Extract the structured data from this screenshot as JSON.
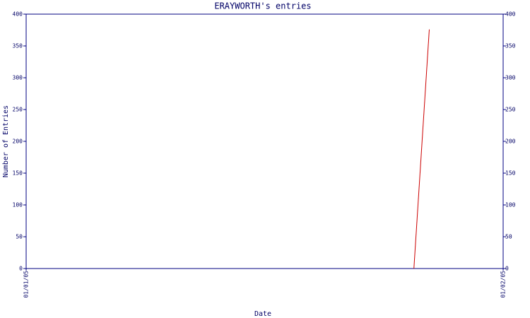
{
  "chart_data": {
    "type": "line",
    "title": "ERAYWORTH's entries",
    "x_label": "Date",
    "y_label": "Number of Entries",
    "x": [
      25.2,
      26.2
    ],
    "series": [
      {
        "name": "entries",
        "color": "#cc0000",
        "values": [
          0,
          376
        ]
      }
    ],
    "xlim": [
      0,
      31
    ],
    "xticks": [
      {
        "value": 0,
        "label": "01/01/05"
      },
      {
        "value": 31,
        "label": "01/02/05"
      }
    ],
    "ylim": [
      0,
      400
    ],
    "yticks": [
      0,
      50,
      100,
      150,
      200,
      250,
      300,
      350,
      400
    ],
    "y2lim": [
      0,
      400
    ],
    "y2ticks": [
      0,
      50,
      100,
      150,
      200,
      250,
      300,
      350,
      400
    ],
    "axis_color": "#000080"
  }
}
